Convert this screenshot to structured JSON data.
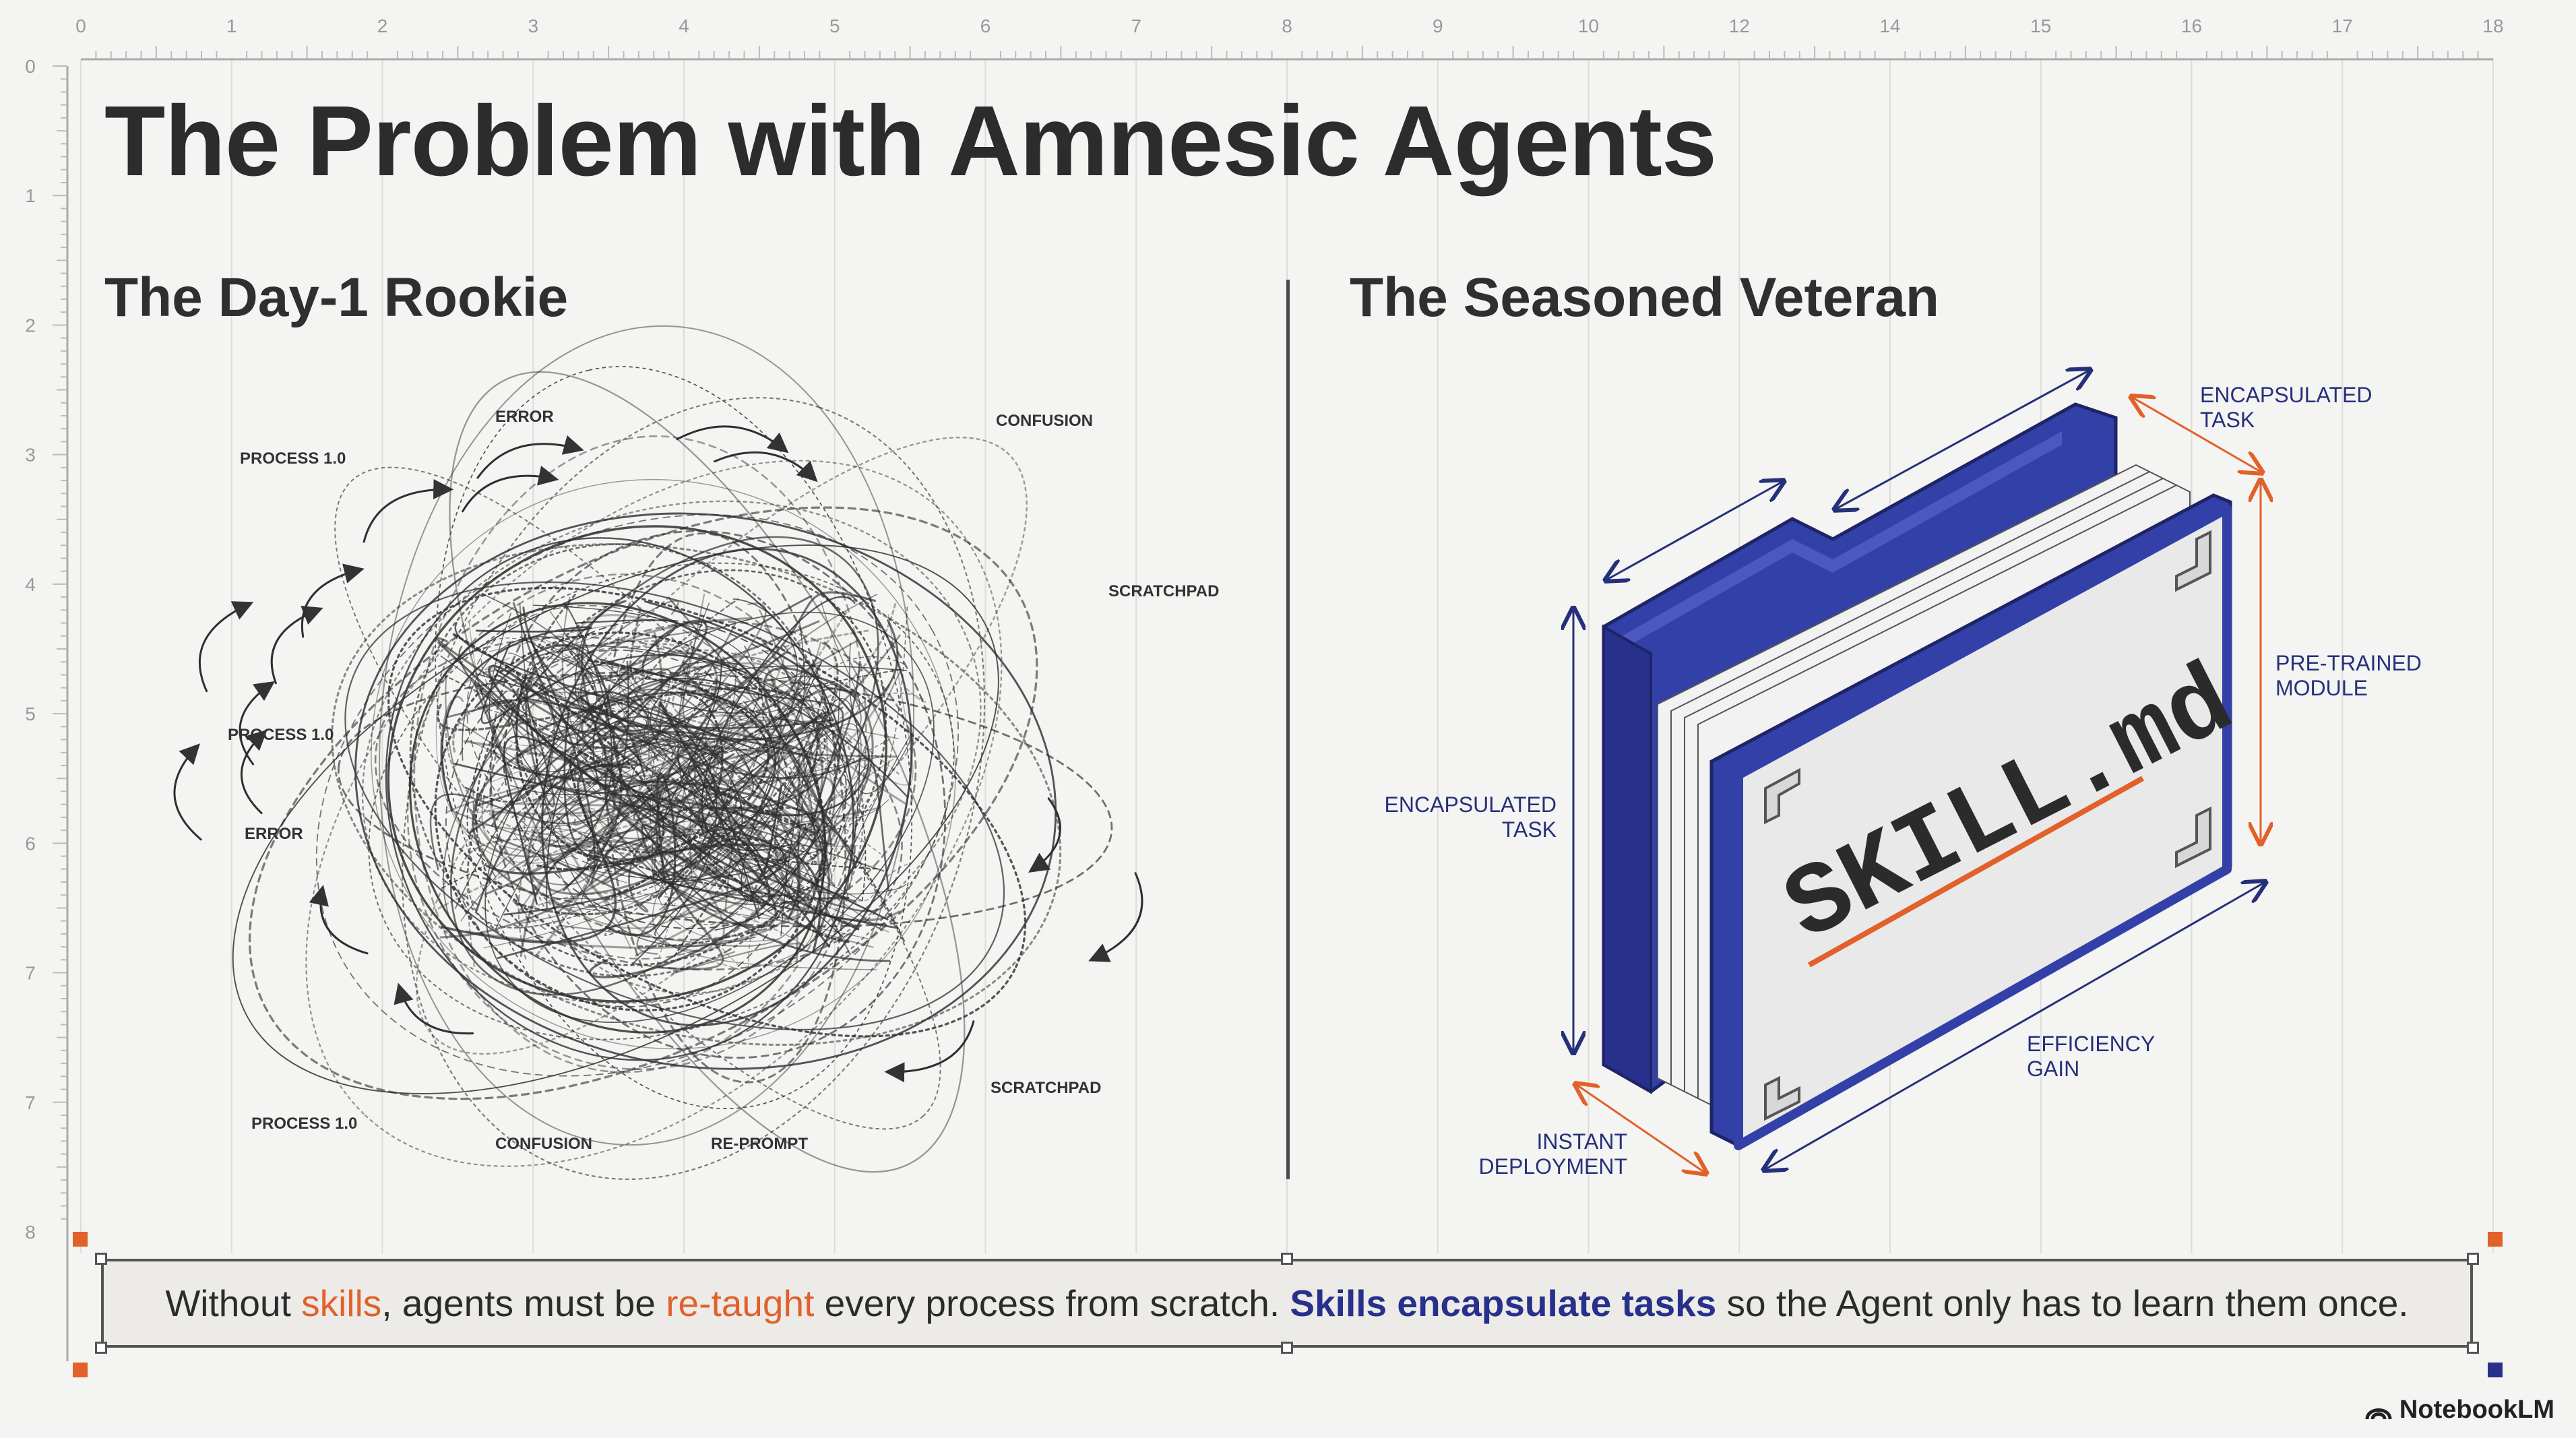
{
  "title": "The Problem with Amnesic Agents",
  "ruler": {
    "top_ticks": [
      "0",
      "1",
      "2",
      "3",
      "4",
      "5",
      "6",
      "7",
      "8",
      "9",
      "10",
      "12",
      "14",
      "15",
      "16",
      "17",
      "18"
    ],
    "left_ticks": [
      "0",
      "1",
      "2",
      "3",
      "4",
      "5",
      "6",
      "7",
      "7",
      "8"
    ]
  },
  "panels": {
    "rookie": {
      "title": "The Day-1 Rookie",
      "labels": [
        "ERROR",
        "CONFUSION",
        "PROCESS 1.0",
        "SCRATCHPAD",
        "PROCESS 1.0",
        "ERROR",
        "SCRATCHPAD",
        "PROCESS 1.0",
        "CONFUSION",
        "RE-PROMPT"
      ]
    },
    "veteran": {
      "title": "The Seasoned Veteran",
      "skill_label": "SKILL.md",
      "labels": {
        "encapsulated_top": [
          "ENCAPSULATED",
          "TASK"
        ],
        "pretrained": [
          "PRE-TRAINED",
          "MODULE"
        ],
        "encapsulated_left": [
          "ENCAPSULATED",
          "TASK"
        ],
        "efficiency": [
          "EFFICIENCY",
          "GAIN"
        ],
        "instant": [
          "INSTANT",
          "DEPLOYMENT"
        ]
      }
    }
  },
  "caption": {
    "part1": "Without ",
    "part2": "skills",
    "part3": ", agents must be ",
    "part4": "re-taught",
    "part5": " every process from scratch. ",
    "part6": "Skills encapsulate tasks",
    "part7": " so the Agent only has to learn them once."
  },
  "brand": "NotebookLM",
  "colors": {
    "accent_orange": "#e2602a",
    "accent_blue": "#27308a",
    "folder_blue": "#3240a8"
  }
}
